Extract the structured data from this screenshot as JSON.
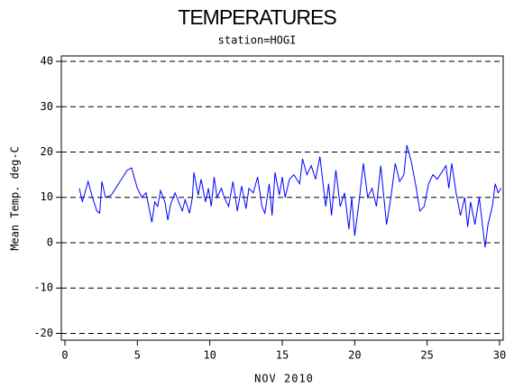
{
  "chart_data": {
    "type": "line",
    "title": "TEMPERATURES",
    "subtitle": "station=HOGI",
    "x_label": "NOV 2010",
    "y_label": "Mean Temp. deg-C",
    "color": "#0000ff",
    "grid": true,
    "x": [
      1.0,
      1.2,
      1.6,
      1.9,
      2.2,
      2.4,
      2.55,
      2.8,
      3.2,
      3.6,
      3.9,
      4.3,
      4.6,
      5.0,
      5.3,
      5.6,
      6.0,
      6.2,
      6.4,
      6.6,
      6.9,
      7.1,
      7.3,
      7.6,
      8.1,
      8.3,
      8.6,
      8.8,
      8.9,
      9.2,
      9.4,
      9.7,
      9.9,
      10.1,
      10.3,
      10.5,
      10.8,
      11.0,
      11.3,
      11.6,
      11.9,
      12.2,
      12.5,
      12.7,
      13.0,
      13.3,
      13.6,
      13.8,
      14.1,
      14.3,
      14.5,
      14.8,
      15.0,
      15.2,
      15.5,
      15.8,
      16.2,
      16.4,
      16.7,
      17.0,
      17.3,
      17.6,
      18.0,
      18.2,
      18.4,
      18.7,
      19.0,
      19.3,
      19.6,
      19.8,
      20.0,
      20.3,
      20.6,
      20.9,
      21.2,
      21.5,
      21.8,
      22.2,
      22.5,
      22.8,
      23.1,
      23.4,
      23.6,
      23.9,
      24.2,
      24.5,
      24.8,
      25.1,
      25.4,
      25.7,
      26.0,
      26.3,
      26.5,
      26.7,
      27.0,
      27.3,
      27.6,
      27.8,
      28.0,
      28.3,
      28.6,
      29.0,
      29.2,
      29.5,
      29.7,
      29.9,
      30.1
    ],
    "values": [
      12,
      9,
      13.5,
      10,
      7,
      6.5,
      13.5,
      10,
      10.5,
      12.5,
      14,
      16,
      16.5,
      12,
      10,
      11,
      4.5,
      9,
      8,
      11.5,
      9,
      5,
      8.5,
      11,
      7,
      9.5,
      6.5,
      10,
      15.5,
      10.5,
      14,
      9,
      12,
      8,
      14.5,
      10,
      12,
      10,
      8,
      13.5,
      7,
      12.5,
      7.5,
      12,
      11,
      14.5,
      8,
      6.5,
      13,
      6,
      15.5,
      10.5,
      14.5,
      10,
      14,
      15,
      13,
      18.5,
      15,
      17,
      14,
      19,
      8,
      13,
      6,
      16,
      8,
      11,
      3,
      10,
      1.5,
      9,
      17.5,
      10,
      12,
      8,
      17,
      4,
      10,
      17.5,
      13.5,
      15,
      21.5,
      18,
      13,
      7,
      8,
      13,
      15,
      14,
      15.5,
      17,
      12,
      17.5,
      11,
      6,
      10,
      3.5,
      9,
      4,
      10,
      -1,
      4,
      8,
      13,
      11,
      12
    ],
    "xlim": [
      -0.25,
      30.25
    ],
    "xticks": [
      0,
      5,
      10,
      15,
      20,
      25,
      30
    ],
    "ylim": [
      -21.5,
      41.2
    ],
    "yticks": [
      -20,
      -10,
      0,
      10,
      20,
      30,
      40
    ]
  }
}
